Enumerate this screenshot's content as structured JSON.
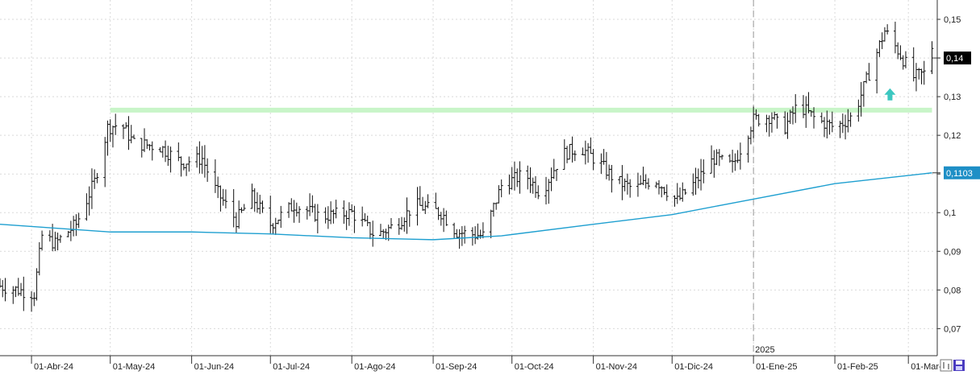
{
  "chart_data": {
    "type": "ohlc",
    "title": "",
    "xlabel": "",
    "ylabel": "",
    "ylim": [
      0.063,
      0.155
    ],
    "y_ticks": [
      0.07,
      0.08,
      0.09,
      0.1,
      0.11,
      0.12,
      0.13,
      0.14,
      0.15
    ],
    "y_tick_labels": [
      "0,07",
      "0,08",
      "0,09",
      "0,1",
      "0,11",
      "0,12",
      "0,13",
      "0,14",
      "0,15"
    ],
    "x_range": [
      "2024-03-20",
      "2025-03-12"
    ],
    "x_ticks": [
      {
        "date": "2024-04-01",
        "label": "01-Abr-24"
      },
      {
        "date": "2024-05-01",
        "label": "01-May-24"
      },
      {
        "date": "2024-06-01",
        "label": "01-Jun-24"
      },
      {
        "date": "2024-07-01",
        "label": "01-Jul-24"
      },
      {
        "date": "2024-08-01",
        "label": "01-Ago-24"
      },
      {
        "date": "2024-09-01",
        "label": "01-Sep-24"
      },
      {
        "date": "2024-10-01",
        "label": "01-Oct-24"
      },
      {
        "date": "2024-11-01",
        "label": "01-Nov-24"
      },
      {
        "date": "2024-12-01",
        "label": "01-Dic-24"
      },
      {
        "date": "2025-01-01",
        "label": "01-Ene-25"
      },
      {
        "date": "2025-02-01",
        "label": "01-Feb-25"
      },
      {
        "date": "2025-03-01",
        "label": "01-Mar-25"
      }
    ],
    "year_marker": {
      "date": "2025-01-01",
      "label": "2025"
    },
    "price_anchors": [
      [
        "2024-03-20",
        0.081
      ],
      [
        "2024-03-27",
        0.08
      ],
      [
        "2024-04-02",
        0.079
      ],
      [
        "2024-04-05",
        0.094
      ],
      [
        "2024-04-10",
        0.092
      ],
      [
        "2024-04-18",
        0.097
      ],
      [
        "2024-04-25",
        0.108
      ],
      [
        "2024-04-30",
        0.122
      ],
      [
        "2024-05-05",
        0.123
      ],
      [
        "2024-05-10",
        0.118
      ],
      [
        "2024-05-20",
        0.117
      ],
      [
        "2024-05-28",
        0.113
      ],
      [
        "2024-06-05",
        0.114
      ],
      [
        "2024-06-10",
        0.106
      ],
      [
        "2024-06-18",
        0.098
      ],
      [
        "2024-06-24",
        0.104
      ],
      [
        "2024-07-01",
        0.097
      ],
      [
        "2024-07-10",
        0.102
      ],
      [
        "2024-07-20",
        0.099
      ],
      [
        "2024-08-01",
        0.1
      ],
      [
        "2024-08-10",
        0.094
      ],
      [
        "2024-08-18",
        0.097
      ],
      [
        "2024-08-25",
        0.102
      ],
      [
        "2024-09-04",
        0.1
      ],
      [
        "2024-09-10",
        0.095
      ],
      [
        "2024-09-20",
        0.094
      ],
      [
        "2024-09-27",
        0.107
      ],
      [
        "2024-10-06",
        0.11
      ],
      [
        "2024-10-12",
        0.105
      ],
      [
        "2024-10-20",
        0.115
      ],
      [
        "2024-10-27",
        0.117
      ],
      [
        "2024-11-03",
        0.113
      ],
      [
        "2024-11-10",
        0.108
      ],
      [
        "2024-11-17",
        0.106
      ],
      [
        "2024-11-24",
        0.109
      ],
      [
        "2024-12-03",
        0.103
      ],
      [
        "2024-12-10",
        0.108
      ],
      [
        "2024-12-17",
        0.114
      ],
      [
        "2024-12-24",
        0.112
      ],
      [
        "2025-01-01",
        0.124
      ],
      [
        "2025-01-08",
        0.125
      ],
      [
        "2025-01-12",
        0.121
      ],
      [
        "2025-01-18",
        0.128
      ],
      [
        "2025-01-25",
        0.124
      ],
      [
        "2025-02-01",
        0.122
      ],
      [
        "2025-02-08",
        0.125
      ],
      [
        "2025-02-14",
        0.136
      ],
      [
        "2025-02-20",
        0.147
      ],
      [
        "2025-02-25",
        0.142
      ],
      [
        "2025-03-03",
        0.135
      ],
      [
        "2025-03-07",
        0.136
      ],
      [
        "2025-03-10",
        0.143
      ]
    ],
    "bar_range": 0.006,
    "moving_average": [
      [
        "2024-03-20",
        0.097
      ],
      [
        "2024-05-01",
        0.095
      ],
      [
        "2024-06-01",
        0.095
      ],
      [
        "2024-07-01",
        0.0945
      ],
      [
        "2024-08-01",
        0.0935
      ],
      [
        "2024-09-01",
        0.093
      ],
      [
        "2024-09-27",
        0.094
      ],
      [
        "2024-11-01",
        0.097
      ],
      [
        "2024-12-01",
        0.0995
      ],
      [
        "2025-01-01",
        0.1035
      ],
      [
        "2025-02-01",
        0.1075
      ],
      [
        "2025-03-10",
        0.1103
      ]
    ],
    "resistance_level": {
      "value": 0.1265,
      "from": "2024-05-01",
      "to": "2025-03-10",
      "color": "#c8f5c8"
    },
    "arrow_marker": {
      "date": "2025-02-22",
      "value": 0.1305,
      "color": "#3cc7c0",
      "icon": "up-arrow-icon"
    },
    "last_price": {
      "value": 0.14,
      "label": "0,14",
      "color": "#000000"
    },
    "ma_value": {
      "value": 0.1103,
      "label": "0,1103",
      "color": "#1e8fc6"
    },
    "colors": {
      "bars": "#111111",
      "ma_line": "#1e9fd0",
      "grid": "#d9d9d9",
      "year_line": "#9a9a9a"
    }
  },
  "footer": {
    "icons": [
      "bar-chart-icon",
      "save-icon"
    ]
  }
}
